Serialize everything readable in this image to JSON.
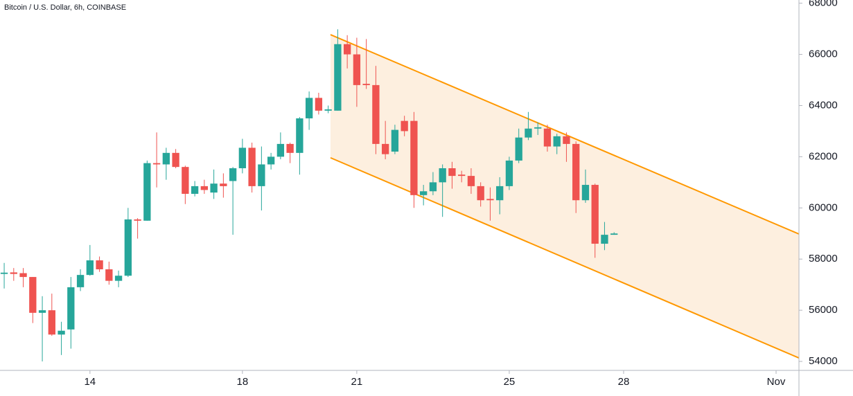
{
  "chart_data": {
    "type": "candlestick",
    "title": "Bitcoin / U.S. Dollar, 6h, COINBASE",
    "x": [
      11.75,
      12,
      12.25,
      12.5,
      12.75,
      13,
      13.25,
      13.5,
      13.75,
      14,
      14.25,
      14.5,
      14.75,
      15,
      15.25,
      15.5,
      15.75,
      16,
      16.25,
      16.5,
      16.75,
      17,
      17.25,
      17.5,
      17.75,
      18,
      18.25,
      18.5,
      18.75,
      19,
      19.25,
      19.5,
      19.75,
      20,
      20.25,
      20.5,
      20.75,
      21,
      21.25,
      21.5,
      21.75,
      22,
      22.25,
      22.5,
      22.75,
      23,
      23.25,
      23.5,
      23.75,
      24,
      24.25,
      24.5,
      24.75,
      25,
      25.25,
      25.5,
      25.75,
      26,
      26.25,
      26.5,
      26.75,
      27,
      27.25,
      27.5,
      27.75
    ],
    "open": [
      57420,
      57480,
      57450,
      57300,
      55900,
      56000,
      55050,
      55250,
      56900,
      57380,
      57950,
      57600,
      57150,
      57350,
      59550,
      59500,
      61750,
      61700,
      62150,
      61600,
      60550,
      60850,
      60600,
      60950,
      61050,
      61550,
      62350,
      60850,
      61700,
      62000,
      62500,
      62150,
      63500,
      64300,
      63800,
      63800,
      66400,
      66000,
      64850,
      64800,
      62500,
      62200,
      63400,
      63400,
      60500,
      60650,
      61000,
      61550,
      61300,
      61250,
      60850,
      60350,
      60300,
      60850,
      61850,
      62750,
      63100,
      63100,
      62400,
      62800,
      62500,
      60300,
      60900,
      58600,
      58950
    ],
    "high": [
      57850,
      57650,
      57650,
      57300,
      56550,
      56650,
      55550,
      57300,
      57600,
      58550,
      58100,
      57900,
      57550,
      60000,
      59600,
      61850,
      62950,
      62350,
      62300,
      61650,
      61050,
      61100,
      61500,
      61350,
      61600,
      62700,
      62550,
      62400,
      62150,
      62950,
      62550,
      63550,
      64550,
      64500,
      64000,
      66980,
      66750,
      66650,
      66600,
      65550,
      63400,
      63250,
      63600,
      63750,
      60900,
      61400,
      61700,
      61800,
      61450,
      61550,
      61000,
      60800,
      61200,
      62000,
      63100,
      63750,
      63350,
      63250,
      62900,
      62950,
      62600,
      61500,
      60950,
      59450,
      59050
    ],
    "low": [
      56850,
      57150,
      56900,
      55500,
      54000,
      55000,
      54250,
      54500,
      56750,
      57350,
      57500,
      57000,
      56900,
      57300,
      58800,
      59500,
      60800,
      61100,
      61550,
      60150,
      60450,
      60550,
      60350,
      60400,
      58950,
      61350,
      60600,
      59900,
      61500,
      61900,
      61750,
      61300,
      63050,
      63650,
      63700,
      63800,
      65450,
      63950,
      64650,
      62100,
      61900,
      62100,
      62800,
      60000,
      60100,
      60500,
      59650,
      60750,
      61000,
      60550,
      60050,
      59500,
      59750,
      60700,
      61750,
      62650,
      62850,
      62200,
      62100,
      61800,
      59800,
      60200,
      58050,
      58350,
      58950
    ],
    "close": [
      57470,
      57420,
      57300,
      55900,
      56000,
      55050,
      55200,
      56900,
      57380,
      57950,
      57600,
      57150,
      57350,
      59550,
      59500,
      61750,
      61700,
      62150,
      61600,
      60550,
      60850,
      60700,
      60950,
      60850,
      61550,
      62350,
      60850,
      61700,
      62000,
      62500,
      62150,
      63500,
      64300,
      63800,
      63850,
      66400,
      66000,
      64800,
      64800,
      62500,
      62100,
      63050,
      63000,
      60500,
      60650,
      61000,
      61550,
      61250,
      61250,
      60850,
      60300,
      60300,
      60850,
      61850,
      62750,
      63100,
      63150,
      62400,
      62800,
      62500,
      60300,
      60900,
      58600,
      58950,
      59000
    ],
    "up_color": "#26a69a",
    "down_color": "#ef5350",
    "channel": {
      "x": [
        20.31,
        32.6
      ],
      "upper": [
        66770,
        58980
      ],
      "lower": [
        61960,
        54135
      ],
      "color": "#ff9800",
      "fill": "#fdebd7"
    },
    "xlim": [
      11.64,
      32.6
    ],
    "ylim": [
      53650,
      68125
    ],
    "xticks": [
      14,
      18,
      21,
      25,
      28,
      {
        "value": 32,
        "label": "Nov"
      }
    ],
    "yticks": [
      54000,
      56000,
      58000,
      60000,
      62000,
      64000,
      66000,
      68000
    ]
  }
}
